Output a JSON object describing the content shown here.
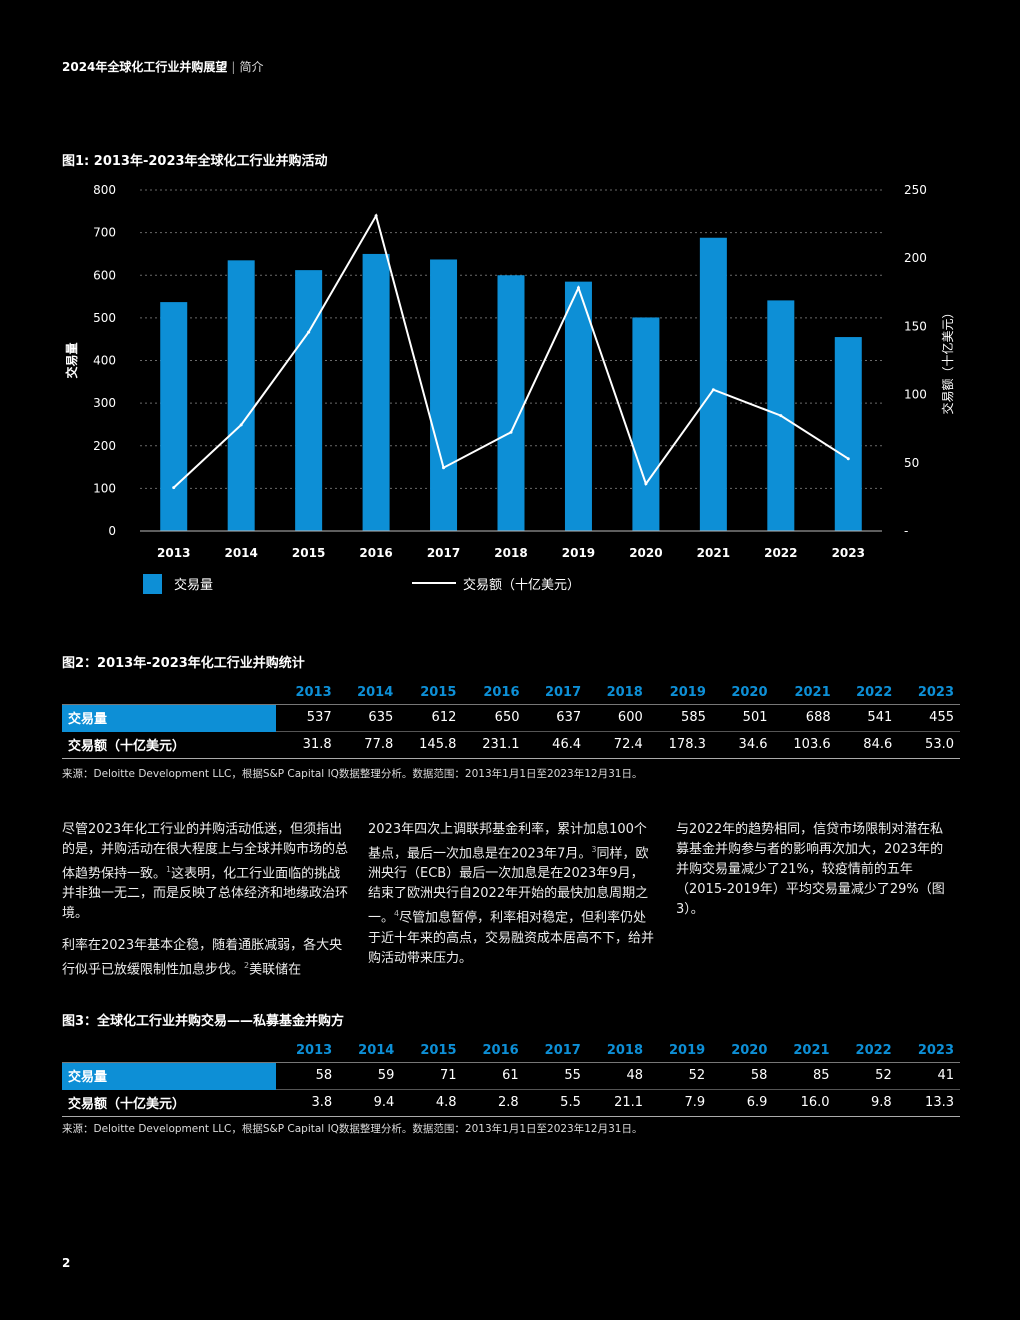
{
  "header": {
    "title": "2024年全球化工行业并购展望",
    "separator": "|",
    "section": "简介"
  },
  "fig1": {
    "title": "图1: 2013年-2023年全球化工行业并购活动"
  },
  "chart_data": {
    "type": "bar",
    "title": "图1: 2013年-2023年全球化工行业并购活动",
    "categories": [
      "2013",
      "2014",
      "2015",
      "2016",
      "2017",
      "2018",
      "2019",
      "2020",
      "2021",
      "2022",
      "2023"
    ],
    "series": [
      {
        "name": "交易量",
        "type": "bar",
        "axis": "left",
        "color": "#0d8fd6",
        "values": [
          537,
          635,
          612,
          650,
          637,
          600,
          585,
          501,
          688,
          541,
          455
        ]
      },
      {
        "name": "交易额（十亿美元）",
        "type": "line",
        "axis": "right",
        "color": "#ffffff",
        "values": [
          31.8,
          77.8,
          145.8,
          231.1,
          46.4,
          72.4,
          178.3,
          34.6,
          103.6,
          84.6,
          53.0
        ]
      }
    ],
    "ylabel": "交易量",
    "y2label": "交易额（十亿美元）",
    "ylim": [
      0,
      800
    ],
    "y2lim": [
      0,
      250
    ],
    "yticks": [
      "0",
      "100",
      "200",
      "300",
      "400",
      "500",
      "600",
      "700",
      "800"
    ],
    "y2ticks": [
      "-",
      "50",
      "100",
      "150",
      "200",
      "250"
    ],
    "legend": {
      "position": "bottom",
      "bar_label": "交易量",
      "line_label": "交易额（十亿美元）"
    },
    "grid": true
  },
  "fig2": {
    "title": "图2：2013年-2023年化工行业并购统计",
    "years": [
      "2013",
      "2014",
      "2015",
      "2016",
      "2017",
      "2018",
      "2019",
      "2020",
      "2021",
      "2022",
      "2023"
    ],
    "rows": [
      {
        "label": "交易量",
        "values": [
          "537",
          "635",
          "612",
          "650",
          "637",
          "600",
          "585",
          "501",
          "688",
          "541",
          "455"
        ]
      },
      {
        "label": "交易额（十亿美元）",
        "values": [
          "31.8",
          "77.8",
          "145.8",
          "231.1",
          "46.4",
          "72.4",
          "178.3",
          "34.6",
          "103.6",
          "84.6",
          "53.0"
        ]
      }
    ],
    "source": "来源：Deloitte Development LLC，根据S&P Capital IQ数据整理分析。数据范围：2013年1月1日至2023年12月31日。"
  },
  "body": {
    "col1_p1": "尽管2023年化工行业的并购活动低迷，但须指出的是，并购活动在很大程度上与全球并购市场的总体趋势保持一致。",
    "col1_p1_sup": "1",
    "col1_p1_tail": "这表明，化工行业面临的挑战并非独一无二，而是反映了总体经济和地缘政治环境。",
    "col1_p2": "利率在2023年基本企稳，随着通胀减弱，各大央行似乎已放缓限制性加息步伐。",
    "col1_p2_sup": "2",
    "col1_p2_tail": "美联储在",
    "col2_p1": "2023年四次上调联邦基金利率，累计加息100个基点，最后一次加息是在2023年7月。",
    "col2_p1_sup": "3",
    "col2_p1_mid": "同样，欧洲央行（ECB）最后一次加息是在2023年9月，结束了欧洲央行自2022年开始的最快加息周期之一。",
    "col2_p1_sup2": "4",
    "col2_p1_tail": "尽管加息暂停，利率相对稳定，但利率仍处于近十年来的高点，交易融资成本居高不下，给并购活动带来压力。",
    "col3_p1": "与2022年的趋势相同，信贷市场限制对潜在私募基金并购参与者的影响再次加大，2023年的并购交易量减少了21%，较疫情前的五年（2015-2019年）平均交易量减少了29%（图3）。"
  },
  "fig3": {
    "title": "图3：全球化工行业并购交易——私募基金并购方",
    "years": [
      "2013",
      "2014",
      "2015",
      "2016",
      "2017",
      "2018",
      "2019",
      "2020",
      "2021",
      "2022",
      "2023"
    ],
    "rows": [
      {
        "label": "交易量",
        "values": [
          "58",
          "59",
          "71",
          "61",
          "55",
          "48",
          "52",
          "58",
          "85",
          "52",
          "41"
        ]
      },
      {
        "label": "交易额（十亿美元）",
        "values": [
          "3.8",
          "9.4",
          "4.8",
          "2.8",
          "5.5",
          "21.1",
          "7.9",
          "6.9",
          "16.0",
          "9.8",
          "13.3"
        ]
      }
    ],
    "source": "来源：Deloitte Development LLC，根据S&P Capital IQ数据整理分析。数据范围：2013年1月1日至2023年12月31日。"
  },
  "page_number": "2"
}
